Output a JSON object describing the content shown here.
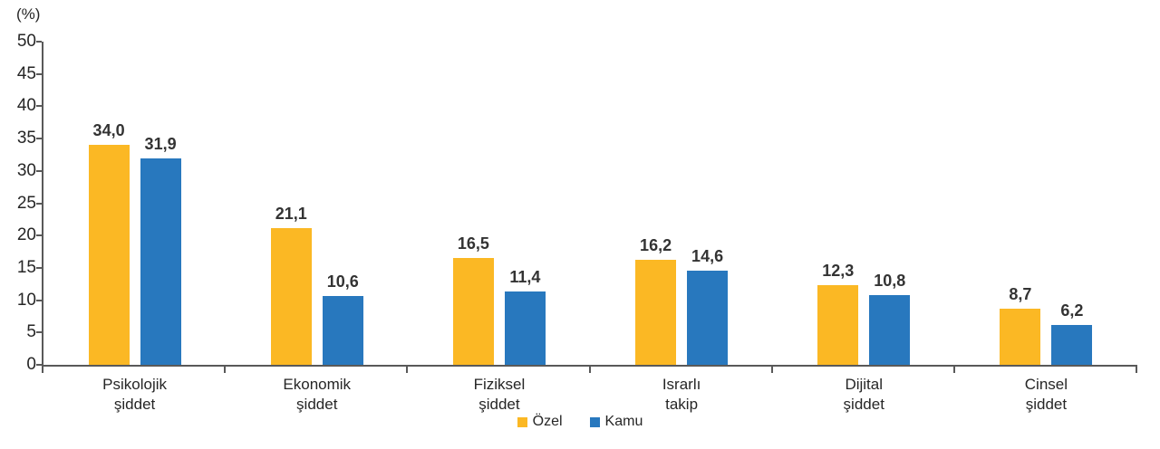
{
  "chart_data": {
    "type": "bar",
    "title": "",
    "ylabel": "(%)",
    "xlabel": "",
    "ylim": [
      0,
      50
    ],
    "ytick_step": 5,
    "grid": false,
    "legend_position": "bottom-center",
    "value_label_decimal_separator": ",",
    "axis_color": "#595959",
    "text_color": "#262626",
    "categories": [
      "Psikolojik\nşiddet",
      "Ekonomik\nşiddet",
      "Fiziksel\nşiddet",
      "Israrlı\ntakip",
      "Dijital\nşiddet",
      "Cinsel\nşiddet"
    ],
    "series": [
      {
        "name": "Özel",
        "color": "#FBB824",
        "values": [
          34.0,
          21.1,
          16.5,
          16.2,
          12.3,
          8.7
        ]
      },
      {
        "name": "Kamu",
        "color": "#2878BE",
        "values": [
          31.9,
          10.6,
          11.4,
          14.6,
          10.8,
          6.2
        ]
      }
    ]
  }
}
